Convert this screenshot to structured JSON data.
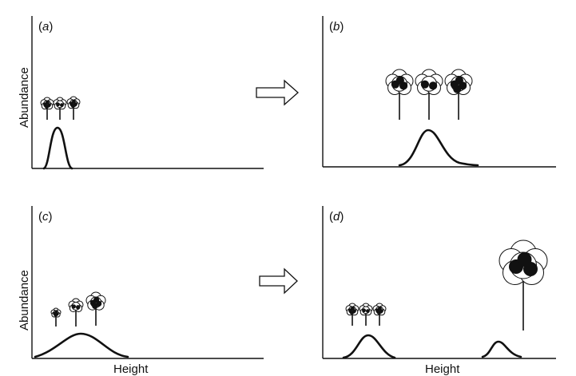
{
  "panels": [
    {
      "id": "a",
      "letter": "a",
      "open": "(",
      "close": ")"
    },
    {
      "id": "b",
      "letter": "b",
      "open": "(",
      "close": ")"
    },
    {
      "id": "c",
      "letter": "c",
      "open": "(",
      "close": ")"
    },
    {
      "id": "d",
      "letter": "d",
      "open": "(",
      "close": ")"
    }
  ],
  "axis_labels": {
    "y_top": "Abundance",
    "y_bottom": "Abundance",
    "x_left": "Height",
    "x_right": "Height"
  },
  "icons": {
    "transition_arrow": "right-arrow-icon",
    "tree": "tree-icon"
  },
  "colors": {
    "ink": "#111111",
    "background": "#ffffff"
  }
}
